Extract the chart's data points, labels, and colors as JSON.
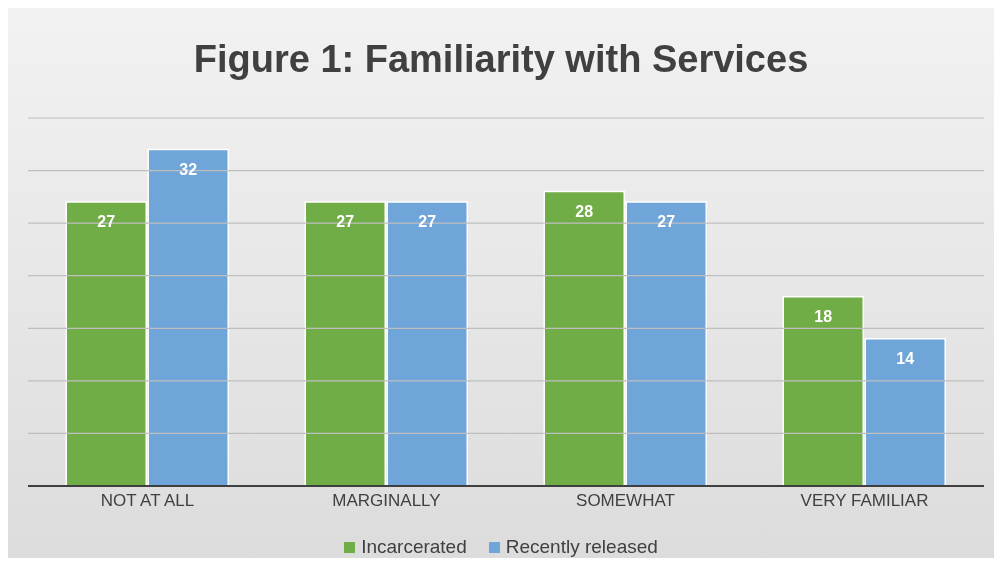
{
  "chart_data": {
    "type": "bar",
    "title": "Figure 1: Familiarity with Services",
    "categories": [
      "NOT AT ALL",
      "MARGINALLY",
      "SOMEWHAT",
      "VERY FAMILIAR"
    ],
    "series": [
      {
        "name": "Incarcerated",
        "color": "#70ad47",
        "values": [
          27,
          27,
          28,
          18
        ]
      },
      {
        "name": "Recently released",
        "color": "#6fa5d8",
        "values": [
          32,
          27,
          27,
          14
        ]
      }
    ],
    "ylim": [
      0,
      35
    ],
    "yticks": [
      {
        "value": 0,
        "label": null
      },
      {
        "value": 5,
        "label": null
      },
      {
        "value": 10,
        "label": null
      },
      {
        "value": 15,
        "label": null
      },
      {
        "value": 20,
        "label": null
      },
      {
        "value": 25,
        "label": null
      },
      {
        "value": 30,
        "label": null
      },
      {
        "value": 35,
        "label": null
      }
    ],
    "tick_labels": "x",
    "grid": "y",
    "legend": "bottom",
    "data_labels": true
  }
}
